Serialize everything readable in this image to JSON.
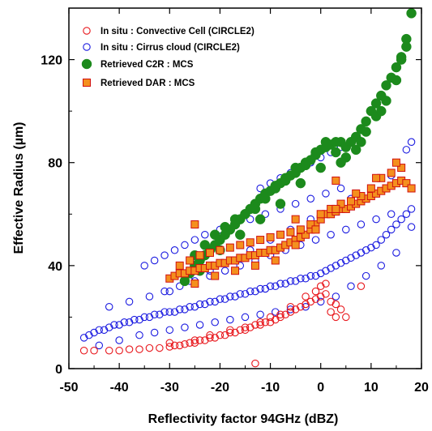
{
  "chart_data": {
    "type": "scatter",
    "xlabel": "Reflectivity factor 94GHz (dBZ)",
    "ylabel": "Effective Radius (µm)",
    "xlim": [
      -50,
      20
    ],
    "ylim": [
      0,
      140
    ],
    "xticks": [
      "-50",
      "-40",
      "-30",
      "-20",
      "-10",
      "0",
      "10",
      "20"
    ],
    "yticks": [
      "0",
      "40",
      "80",
      "120"
    ],
    "legend_position": "top-left",
    "series": [
      {
        "name": "In situ : Convective Cell (CIRCLE2)",
        "marker": "open-circle",
        "color": "#e8161b",
        "x": [
          -47,
          -45,
          -42,
          -40,
          -38,
          -36,
          -34,
          -32,
          -30,
          -29,
          -28,
          -27,
          -26,
          -25,
          -24,
          -23,
          -22,
          -21,
          -20,
          -19,
          -18,
          -17,
          -16,
          -15,
          -14,
          -13,
          -12,
          -11,
          -10,
          -9,
          -8,
          -7,
          -6,
          -5,
          -4,
          -3,
          -2,
          -1,
          0,
          1,
          2,
          3,
          4,
          5,
          8,
          -22,
          -18,
          -12,
          -10,
          -13,
          -25,
          -30,
          -6,
          -3,
          -1,
          0,
          2,
          3,
          1,
          -8,
          -15
        ],
        "y": [
          7,
          7,
          7,
          7,
          7.5,
          7.5,
          8,
          8,
          8.5,
          9,
          9,
          9.5,
          10,
          10,
          11,
          11,
          12,
          12,
          13,
          13,
          14,
          14,
          15,
          15,
          16,
          17,
          17,
          18,
          18,
          19,
          20,
          21,
          22,
          23,
          24,
          25,
          26,
          27,
          28,
          29,
          26,
          25,
          23,
          20,
          32,
          13,
          15,
          18,
          20,
          2,
          11,
          10,
          24,
          28,
          30,
          32,
          22,
          20,
          33,
          21,
          16
        ]
      },
      {
        "name": "In situ : Cirrus cloud (CIRCLE2)",
        "marker": "open-circle",
        "color": "#1a1ae0",
        "x": [
          -47,
          -46,
          -45,
          -44,
          -43,
          -42,
          -41,
          -40,
          -39,
          -38,
          -37,
          -36,
          -35,
          -34,
          -33,
          -32,
          -31,
          -30,
          -29,
          -28,
          -27,
          -26,
          -25,
          -24,
          -23,
          -22,
          -21,
          -20,
          -19,
          -18,
          -17,
          -16,
          -15,
          -14,
          -13,
          -12,
          -11,
          -10,
          -9,
          -8,
          -7,
          -6,
          -5,
          -4,
          -3,
          -2,
          -1,
          0,
          1,
          2,
          3,
          4,
          5,
          6,
          7,
          8,
          9,
          10,
          11,
          12,
          13,
          14,
          15,
          16,
          17,
          18,
          -44,
          -40,
          -36,
          -33,
          -30,
          -27,
          -24,
          -21,
          -18,
          -15,
          -12,
          -9,
          -6,
          -3,
          0,
          3,
          6,
          9,
          12,
          15,
          18,
          -42,
          -38,
          -34,
          -31,
          -28,
          -25,
          -22,
          -19,
          -16,
          -13,
          -10,
          -7,
          -4,
          -1,
          2,
          5,
          8,
          11,
          14,
          -35,
          -33,
          -31,
          -29,
          -27,
          -25,
          -23,
          -20,
          -17,
          -14,
          -11,
          -8,
          -5,
          -2,
          1,
          4,
          -12,
          -10,
          -8,
          -6,
          -4,
          -2,
          0,
          2,
          4,
          -30,
          -26,
          -22,
          -18,
          -14,
          -10,
          -6,
          -2,
          2,
          6,
          10,
          14,
          17,
          18
        ],
        "y": [
          12,
          13,
          14,
          15,
          15,
          16,
          17,
          17,
          18,
          18,
          19,
          19,
          20,
          20,
          21,
          21,
          22,
          22,
          22,
          23,
          23,
          24,
          24,
          25,
          25,
          26,
          26,
          27,
          27,
          28,
          28,
          29,
          29,
          30,
          30,
          31,
          31,
          32,
          32,
          33,
          33,
          34,
          34,
          35,
          35,
          36,
          36,
          37,
          38,
          39,
          40,
          41,
          42,
          43,
          44,
          45,
          46,
          47,
          48,
          50,
          52,
          54,
          56,
          58,
          60,
          62,
          9,
          11,
          13,
          14,
          15,
          16,
          17,
          18,
          19,
          20,
          21,
          22,
          23,
          24,
          26,
          28,
          32,
          36,
          40,
          45,
          55,
          24,
          26,
          28,
          30,
          32,
          34,
          36,
          38,
          40,
          42,
          44,
          46,
          48,
          50,
          52,
          54,
          56,
          58,
          60,
          40,
          42,
          44,
          46,
          48,
          50,
          52,
          54,
          56,
          58,
          60,
          62,
          64,
          66,
          68,
          70,
          70,
          72,
          74,
          76,
          78,
          80,
          82,
          84,
          86,
          30,
          34,
          38,
          42,
          46,
          50,
          54,
          58,
          62,
          66,
          70,
          75,
          85,
          88
        ]
      },
      {
        "name": "Retrieved  C2R : MCS",
        "marker": "filled-circle",
        "color": "#1c8a1c",
        "x": [
          -27,
          -26,
          -25,
          -24,
          -23,
          -22,
          -21,
          -20,
          -19,
          -18,
          -17,
          -16,
          -15,
          -14,
          -13,
          -12,
          -11,
          -10,
          -9,
          -8,
          -7,
          -6,
          -5,
          -4,
          -3,
          -2,
          -1,
          0,
          1,
          2,
          3,
          4,
          5,
          6,
          7,
          8,
          9,
          10,
          11,
          12,
          13,
          14,
          15,
          16,
          17,
          18,
          -25,
          -23,
          -21,
          -19,
          -17,
          -15,
          -13,
          -11,
          -9,
          -7,
          -5,
          -3,
          -1,
          1,
          3,
          5,
          7,
          9,
          11,
          13,
          15,
          17,
          -24,
          -20,
          -16,
          -12,
          -8,
          -4,
          0,
          4,
          8,
          12,
          16
        ],
        "y": [
          34,
          37,
          40,
          42,
          44,
          46,
          48,
          50,
          52,
          54,
          56,
          58,
          60,
          62,
          64,
          66,
          68,
          69,
          71,
          72,
          73,
          75,
          76,
          78,
          79,
          81,
          83,
          85,
          86,
          87,
          88,
          88,
          86,
          88,
          90,
          93,
          96,
          100,
          103,
          106,
          110,
          113,
          117,
          121,
          128,
          138,
          44,
          48,
          52,
          55,
          58,
          60,
          62,
          66,
          70,
          74,
          78,
          80,
          84,
          88,
          84,
          82,
          85,
          92,
          98,
          104,
          112,
          125,
          38,
          46,
          52,
          58,
          64,
          72,
          78,
          80,
          88,
          100,
          120
        ]
      },
      {
        "name": "Retrieved DAR : MCS",
        "marker": "filled-square",
        "color": "#f4901e",
        "x": [
          -30,
          -29,
          -28,
          -27,
          -26,
          -25,
          -24,
          -23,
          -22,
          -21,
          -20,
          -19,
          -18,
          -17,
          -16,
          -15,
          -14,
          -13,
          -12,
          -11,
          -10,
          -9,
          -8,
          -7,
          -6,
          -5,
          -4,
          -3,
          -2,
          -1,
          0,
          1,
          2,
          3,
          4,
          5,
          6,
          7,
          8,
          9,
          10,
          11,
          12,
          13,
          14,
          15,
          16,
          17,
          18,
          -28,
          -26,
          -24,
          -22,
          -20,
          -18,
          -16,
          -14,
          -12,
          -10,
          -8,
          -6,
          -4,
          -2,
          0,
          2,
          4,
          6,
          8,
          10,
          12,
          14,
          16,
          -25,
          -21,
          -17,
          -13,
          -9,
          -5,
          -1,
          3,
          7,
          11,
          15,
          -25,
          -5,
          3
        ],
        "y": [
          35,
          36,
          37,
          37,
          38,
          38,
          39,
          39,
          40,
          40,
          41,
          41,
          42,
          42,
          43,
          43,
          44,
          44,
          45,
          45,
          46,
          46,
          47,
          48,
          49,
          50,
          51,
          52,
          54,
          56,
          58,
          60,
          60,
          61,
          62,
          62,
          63,
          64,
          65,
          66,
          67,
          68,
          69,
          70,
          71,
          72,
          73,
          72,
          70,
          40,
          42,
          44,
          45,
          46,
          47,
          48,
          49,
          50,
          51,
          52,
          53,
          54,
          56,
          60,
          62,
          64,
          65,
          67,
          70,
          74,
          76,
          78,
          33,
          36,
          38,
          40,
          42,
          48,
          54,
          62,
          68,
          74,
          80,
          56,
          58,
          73
        ]
      }
    ]
  }
}
